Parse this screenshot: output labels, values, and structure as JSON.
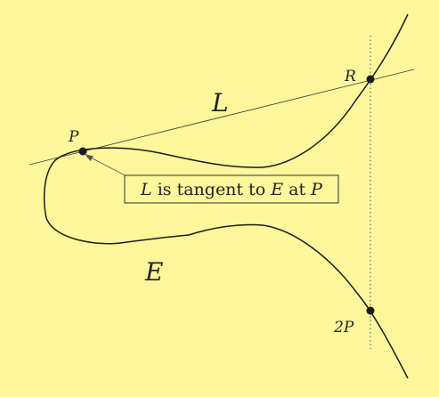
{
  "figure": {
    "background_color": "#fdf69a",
    "stroke_color": "#1c1c1c",
    "line_label": "L",
    "curve_label": "E",
    "points": {
      "p": "P",
      "r": "R",
      "two_p": "2P"
    },
    "annotation": {
      "var_l": "L",
      "text_1": " is tangent to ",
      "var_e": "E",
      "text_2": " at ",
      "var_p": "P"
    }
  }
}
